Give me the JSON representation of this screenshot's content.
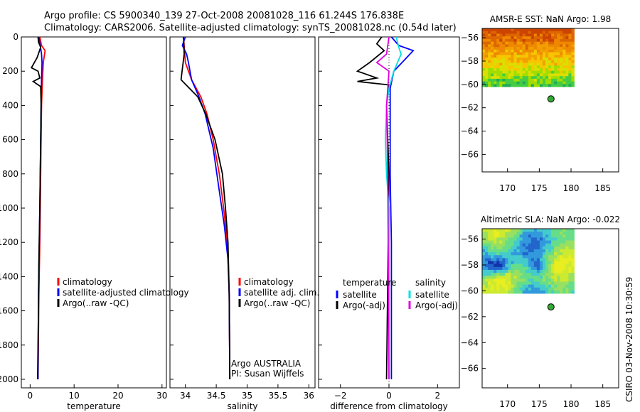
{
  "header": {
    "line1": "Argo profile: CS 5900340_139 27-Oct-2008 20081028_116 61.244S 176.838E",
    "line2": "Climatology: CARS2006. Satellite-adjusted climatology: synTS_20081028.nc (0.54d later)"
  },
  "side_stamp": "CSIRO 03-Nov-2008 10:30:59",
  "chart_data": [
    {
      "type": "line",
      "panel": "temperature",
      "xlabel": "temperature",
      "xlim": [
        -2,
        31
      ],
      "ylim": [
        0,
        2050
      ],
      "y_reversed": true,
      "xticks": [
        0,
        10,
        20,
        30
      ],
      "yticks": [
        0,
        200,
        400,
        600,
        800,
        1000,
        1200,
        1400,
        1600,
        1800,
        2000
      ],
      "legend_position": "lower-right",
      "series": [
        {
          "name": "climatology",
          "color": "#ff0000",
          "points": [
            [
              2.2,
              0
            ],
            [
              2.6,
              50
            ],
            [
              3.4,
              80
            ],
            [
              3.0,
              150
            ],
            [
              2.8,
              250
            ],
            [
              2.6,
              400
            ],
            [
              2.5,
              600
            ],
            [
              2.4,
              800
            ],
            [
              2.3,
              1000
            ],
            [
              2.2,
              1200
            ],
            [
              2.0,
              1500
            ],
            [
              1.8,
              2000
            ]
          ]
        },
        {
          "name": "satellite-adjusted climatology",
          "color": "#0000ff",
          "points": [
            [
              2.0,
              0
            ],
            [
              2.3,
              50
            ],
            [
              2.6,
              100
            ],
            [
              2.7,
              150
            ],
            [
              2.6,
              250
            ],
            [
              2.5,
              400
            ],
            [
              2.4,
              600
            ],
            [
              2.3,
              800
            ],
            [
              2.2,
              1000
            ],
            [
              2.1,
              1200
            ],
            [
              1.9,
              1500
            ],
            [
              1.8,
              2000
            ]
          ]
        },
        {
          "name": "Argo(..raw -QC)",
          "color": "#000000",
          "points": [
            [
              1.8,
              0
            ],
            [
              1.9,
              30
            ],
            [
              2.4,
              60
            ],
            [
              1.6,
              120
            ],
            [
              0.3,
              180
            ],
            [
              1.8,
              200
            ],
            [
              2.2,
              240
            ],
            [
              0.7,
              260
            ],
            [
              2.4,
              290
            ],
            [
              2.5,
              400
            ],
            [
              2.4,
              600
            ],
            [
              2.3,
              800
            ],
            [
              2.2,
              1000
            ],
            [
              2.0,
              1300
            ],
            [
              1.9,
              1600
            ],
            [
              1.7,
              2000
            ]
          ]
        }
      ]
    },
    {
      "type": "line",
      "panel": "salinity",
      "xlabel": "salinity",
      "xlim": [
        33.75,
        36.1
      ],
      "ylim": [
        0,
        2050
      ],
      "y_reversed": true,
      "xticks": [
        34,
        34.5,
        35,
        35.5,
        36
      ],
      "legend_position": "lower-right",
      "annotation": [
        "Argo AUSTRALIA",
        "PI: Susan Wijffels"
      ],
      "series": [
        {
          "name": "climatology",
          "color": "#ff0000",
          "points": [
            [
              33.97,
              0
            ],
            [
              34.0,
              150
            ],
            [
              34.1,
              250
            ],
            [
              34.25,
              350
            ],
            [
              34.35,
              450
            ],
            [
              34.45,
              600
            ],
            [
              34.55,
              800
            ],
            [
              34.62,
              1000
            ],
            [
              34.68,
              1200
            ],
            [
              34.71,
              1500
            ],
            [
              34.72,
              2000
            ]
          ]
        },
        {
          "name": "satellite adj. clim.",
          "color": "#0000ff",
          "points": [
            [
              34.0,
              0
            ],
            [
              33.95,
              50
            ],
            [
              34.02,
              100
            ],
            [
              34.05,
              150
            ],
            [
              34.1,
              250
            ],
            [
              34.22,
              350
            ],
            [
              34.32,
              450
            ],
            [
              34.45,
              650
            ],
            [
              34.55,
              900
            ],
            [
              34.63,
              1100
            ],
            [
              34.69,
              1300
            ],
            [
              34.71,
              1500
            ],
            [
              34.72,
              2000
            ]
          ]
        },
        {
          "name": "Argo(..raw -QC)",
          "color": "#000000",
          "points": [
            [
              33.97,
              0
            ],
            [
              33.98,
              100
            ],
            [
              33.93,
              250
            ],
            [
              34.2,
              350
            ],
            [
              34.33,
              450
            ],
            [
              34.48,
              600
            ],
            [
              34.6,
              800
            ],
            [
              34.65,
              1000
            ],
            [
              34.69,
              1200
            ],
            [
              34.71,
              1500
            ],
            [
              34.72,
              2000
            ]
          ]
        }
      ]
    },
    {
      "type": "line",
      "panel": "difference",
      "xlabel": "difference from climatology",
      "xlim": [
        -2.9,
        2.9
      ],
      "ylim": [
        0,
        2050
      ],
      "y_reversed": true,
      "xticks": [
        -2,
        0,
        2
      ],
      "legend_position": "lower-right",
      "legend_groups": [
        "temperature",
        "salinity"
      ],
      "series": [
        {
          "name": "satellite",
          "group": "temperature",
          "color": "#0000ff",
          "points": [
            [
              0.1,
              0
            ],
            [
              0.4,
              50
            ],
            [
              1.0,
              80
            ],
            [
              0.6,
              140
            ],
            [
              0.2,
              200
            ],
            [
              0.05,
              300
            ],
            [
              0.05,
              400
            ],
            [
              0.05,
              800
            ],
            [
              0.1,
              1200
            ],
            [
              0.1,
              2000
            ]
          ]
        },
        {
          "name": "Argo(-adj)",
          "group": "temperature",
          "color": "#000000",
          "points": [
            [
              -0.3,
              0
            ],
            [
              -0.5,
              40
            ],
            [
              -0.2,
              80
            ],
            [
              -0.8,
              150
            ],
            [
              -1.3,
              200
            ],
            [
              -0.5,
              240
            ],
            [
              -1.3,
              260
            ],
            [
              0.0,
              280
            ],
            [
              -0.1,
              400
            ],
            [
              0.0,
              800
            ],
            [
              -0.05,
              1400
            ],
            [
              -0.1,
              2000
            ]
          ]
        },
        {
          "name": "satellite",
          "group": "salinity",
          "color": "#00e0e0",
          "points": [
            [
              0.3,
              0
            ],
            [
              0.4,
              60
            ],
            [
              0.5,
              100
            ],
            [
              0.2,
              200
            ],
            [
              0.0,
              300
            ],
            [
              -0.1,
              400
            ],
            [
              -0.15,
              600
            ],
            [
              -0.1,
              800
            ],
            [
              0.0,
              1000
            ],
            [
              0.0,
              2000
            ]
          ]
        },
        {
          "name": "Argo(-adj)",
          "group": "salinity",
          "color": "#e000e0",
          "points": [
            [
              0.0,
              0
            ],
            [
              -0.1,
              100
            ],
            [
              -0.5,
              150
            ],
            [
              0.0,
              200
            ],
            [
              -0.1,
              400
            ],
            [
              -0.05,
              800
            ],
            [
              0.0,
              2000
            ]
          ]
        }
      ]
    },
    {
      "type": "heatmap",
      "panel": "sst_map",
      "title": "AMSR-E SST: NaN Argo: 1.98",
      "xlim": [
        166,
        187.5
      ],
      "ylim": [
        -67.5,
        -55.2
      ],
      "xticks": [
        170,
        175,
        180,
        185
      ],
      "yticks": [
        -56,
        -58,
        -60,
        -62,
        -64,
        -66
      ],
      "field_extent": {
        "lon": [
          166,
          180.5
        ],
        "lat": [
          -60.2,
          -55.2
        ]
      },
      "marker": {
        "lon": 176.838,
        "lat": -61.244,
        "color": "#33aa33"
      }
    },
    {
      "type": "heatmap",
      "panel": "sla_map",
      "title": "Altimetric SLA: NaN Argo: -0.022",
      "xlim": [
        166,
        187.5
      ],
      "ylim": [
        -67.5,
        -55.2
      ],
      "xticks": [
        170,
        175,
        180,
        185
      ],
      "yticks": [
        -56,
        -58,
        -60,
        -62,
        -64,
        -66
      ],
      "field_extent": {
        "lon": [
          166,
          180.5
        ],
        "lat": [
          -60.2,
          -55.2
        ]
      },
      "marker": {
        "lon": 176.838,
        "lat": -61.244,
        "color": "#33aa33"
      }
    }
  ]
}
